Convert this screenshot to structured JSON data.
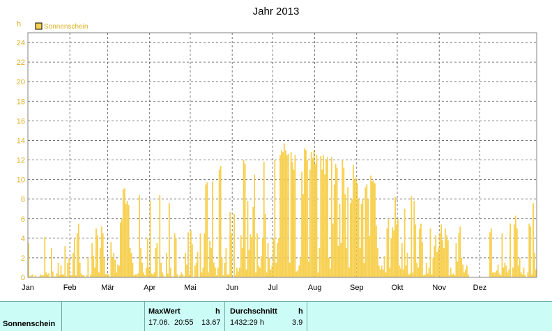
{
  "chart_data": {
    "type": "bar",
    "title": "Jahr 2013",
    "ylabel": "h",
    "ylim": [
      0,
      25
    ],
    "yticks": [
      0,
      2,
      4,
      6,
      8,
      10,
      12,
      14,
      16,
      18,
      20,
      22,
      24
    ],
    "xticks": [
      "Jan",
      "Feb",
      "Mär",
      "Apr",
      "Mai",
      "Jun",
      "Jul",
      "Aug",
      "Sep",
      "Okt",
      "Nov",
      "Dez"
    ],
    "grid": true,
    "legend_position": "top-left",
    "color": "#f7d04f",
    "series": [
      {
        "name": "Sonnenschein",
        "values": [
          3.5,
          0.1,
          0.2,
          0.3,
          0.0,
          0.2,
          0.0,
          0.0,
          0.1,
          0.3,
          0.2,
          0.2,
          4.1,
          0.5,
          0.3,
          0.4,
          0.0,
          3.0,
          0.6,
          0.1,
          0.1,
          0.4,
          1.5,
          0.2,
          1.2,
          0.3,
          0.3,
          3.2,
          0.1,
          1.5,
          2.0,
          0.2,
          0.2,
          2.5,
          4.0,
          0.2,
          4.5,
          5.5,
          1.5,
          0.4,
          0.2,
          0.2,
          0.0,
          0.2,
          2.0,
          0.0,
          0.3,
          3.5,
          2.2,
          1.0,
          5.0,
          4.3,
          0.5,
          3.0,
          5.2,
          4.5,
          2.0,
          0.3,
          0.4,
          0.3,
          0.1,
          3.6,
          2.0,
          2.5,
          1.8,
          0.5,
          1.3,
          1.2,
          5.6,
          6.0,
          9.0,
          9.1,
          7.5,
          7.8,
          7.4,
          3.0,
          2.5,
          1.5,
          0.2,
          0.3,
          0.3,
          0.4,
          8.4,
          3.0,
          1.5,
          0.5,
          0.2,
          1.0,
          4.0,
          1.0,
          7.8,
          0.4,
          0.3,
          0.5,
          3.0,
          3.5,
          0.0,
          8.4,
          1.5,
          0.5,
          0.2,
          0.0,
          2.5,
          0.4,
          7.6,
          1.0,
          0.1,
          0.1,
          4.5,
          4.0,
          0.3,
          0.0,
          0.2,
          0.5,
          0.3,
          0.1,
          2.5,
          1.3,
          4.6,
          0.3,
          4.8,
          3.4,
          0.0,
          1.2,
          1.5,
          2.6,
          0.0,
          4.5,
          0.5,
          1.0,
          4.5,
          9.5,
          9.7,
          0.5,
          3.7,
          3.0,
          9.8,
          1.5,
          1.0,
          0.2,
          1.0,
          11.0,
          11.4,
          2.0,
          0.2,
          1.5,
          3.0,
          0.3,
          0.3,
          6.7,
          4.5,
          0.0,
          6.5,
          0.2,
          1.0,
          0.6,
          1.0,
          4.3,
          3.0,
          12.0,
          11.6,
          0.8,
          7.8,
          2.8,
          4.4,
          4.1,
          7.2,
          10.5,
          0.5,
          4.5,
          1.2,
          1.0,
          2.2,
          4.0,
          11.8,
          6.5,
          0.5,
          3.5,
          2.0,
          0.8,
          1.2,
          4.0,
          12.0,
          1.5,
          3.5,
          4.0,
          12.5,
          13.0,
          12.8,
          13.7,
          13.0,
          12.5,
          12.6,
          1.5,
          12.8,
          11.8,
          11.0,
          12.5,
          0.6,
          0.7,
          1.2,
          2.0,
          10.8,
          8.5,
          13.2,
          13.0,
          12.0,
          1.6,
          11.0,
          12.8,
          12.2,
          13.0,
          11.6,
          12.5,
          0.5,
          3.0,
          12.4,
          11.0,
          12.5,
          10.5,
          12.0,
          12.3,
          2.0,
          0.9,
          12.3,
          5.5,
          9.5,
          11.6,
          11.2,
          3.2,
          7.5,
          3.5,
          12.0,
          11.2,
          8.5,
          3.0,
          9.2,
          1.0,
          7.6,
          8.0,
          11.5,
          10.0,
          10.2,
          9.6,
          8.0,
          3.0,
          7.5,
          8.0,
          1.5,
          9.2,
          9.5,
          8.0,
          4.2,
          10.4,
          9.8,
          9.9,
          9.6,
          5.3,
          3.0,
          1.2,
          0.8,
          1.2,
          0.8,
          2.2,
          0.5,
          5.0,
          6.0,
          1.0,
          4.0,
          5.1,
          4.8,
          8.2,
          5.4,
          6.0,
          1.2,
          0.9,
          3.5,
          0.8,
          7.0,
          1.2,
          2.5,
          0.3,
          0.4,
          8.3,
          0.5,
          7.8,
          5.4,
          1.5,
          1.0,
          5.0,
          5.5,
          3.6,
          0.2,
          0.3,
          1.5,
          0.4,
          1.0,
          5.0,
          0.3,
          2.0,
          3.2,
          4.3,
          2.6,
          3.0,
          4.5,
          5.4,
          3.8,
          3.0,
          5.0,
          4.3,
          3.8,
          0.2,
          1.0,
          0.3,
          0.4,
          0.2,
          3.5,
          1.6,
          4.5,
          5.2,
          2.0,
          1.3,
          0.5,
          0.8,
          1.2,
          0.3,
          0.0,
          0.0,
          0.0,
          0.0,
          0.0,
          0.0,
          0.0,
          0.0,
          0.0,
          0.0,
          0.0,
          0.0,
          0.0,
          0.0,
          0.0,
          4.6,
          5.0,
          0.5,
          0.5,
          0.5,
          0.7,
          1.3,
          0.4,
          0.2,
          4.5,
          1.0,
          1.5,
          1.2,
          0.5,
          0.8,
          5.5,
          0.1,
          1.0,
          5.4,
          6.3,
          5.0,
          1.2,
          2.0,
          0.5,
          0.3,
          1.0,
          0.2,
          0.0,
          0.5,
          5.5,
          5.2,
          0.3,
          7.6,
          2.5,
          0.8
        ]
      }
    ]
  },
  "summary": {
    "row_label": "Sonnenschein",
    "max": {
      "header": "MaxWert",
      "unit": "h",
      "date": "17.06.",
      "time": "20:55",
      "value": "13.67"
    },
    "avg": {
      "header": "Durchschnitt",
      "unit": "h",
      "total": "1432:29 h",
      "value": "3.9"
    }
  }
}
